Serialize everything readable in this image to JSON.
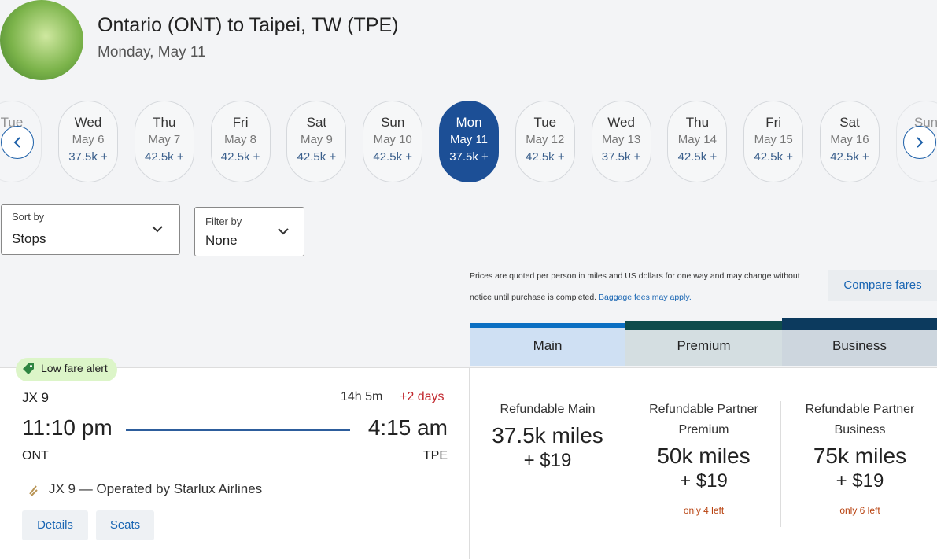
{
  "header": {
    "title": "Ontario (ONT) to Taipei, TW (TPE)",
    "date": "Monday, May 11"
  },
  "dates": {
    "edge_left": "Tue",
    "edge_right": "Sun",
    "items": [
      {
        "day": "Wed",
        "date": "May 6",
        "price": "37.5k +"
      },
      {
        "day": "Thu",
        "date": "May 7",
        "price": "42.5k +"
      },
      {
        "day": "Fri",
        "date": "May 8",
        "price": "42.5k +"
      },
      {
        "day": "Sat",
        "date": "May 9",
        "price": "42.5k +"
      },
      {
        "day": "Sun",
        "date": "May 10",
        "price": "42.5k +"
      },
      {
        "day": "Mon",
        "date": "May 11",
        "price": "37.5k +"
      },
      {
        "day": "Tue",
        "date": "May 12",
        "price": "42.5k +"
      },
      {
        "day": "Wed",
        "date": "May 13",
        "price": "37.5k +"
      },
      {
        "day": "Thu",
        "date": "May 14",
        "price": "42.5k +"
      },
      {
        "day": "Fri",
        "date": "May 15",
        "price": "42.5k +"
      },
      {
        "day": "Sat",
        "date": "May 16",
        "price": "42.5k +"
      }
    ],
    "selected": 5
  },
  "sort": {
    "label": "Sort by",
    "value": "Stops"
  },
  "filter": {
    "label": "Filter by",
    "value": "None"
  },
  "notice": {
    "text": "Prices are quoted per person in miles and US dollars for one way and may change without notice until purchase is completed.",
    "link": "Baggage fees may apply."
  },
  "compare": "Compare fares",
  "tabs": [
    "Main",
    "Premium",
    "Business"
  ],
  "flight": {
    "badge": "Low fare alert",
    "number": "JX 9",
    "duration": "14h 5m",
    "days": "+2 days",
    "depart": "11:10 pm",
    "arrive": "4:15 am",
    "from": "ONT",
    "to": "TPE",
    "operated": "JX 9 — Operated by Starlux Airlines",
    "buttons": [
      "Details",
      "Seats"
    ]
  },
  "fares": [
    {
      "name": "Refundable Main",
      "miles": "37.5k miles",
      "cash": "+ $19"
    },
    {
      "name": "Refundable Partner Premium",
      "miles": "50k miles",
      "cash": "+ $19",
      "note": "only 4 left"
    },
    {
      "name": "Refundable Partner Business",
      "miles": "75k miles",
      "cash": "+ $19",
      "note": "only 6 left"
    }
  ]
}
